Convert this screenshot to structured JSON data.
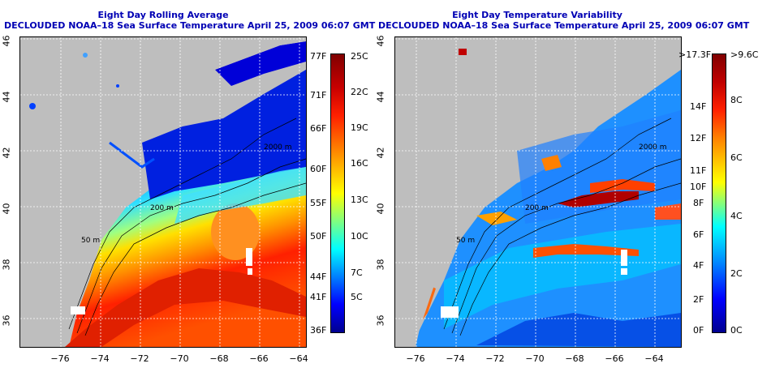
{
  "left_panel": {
    "title": "Eight Day Rolling Average",
    "subtitle": "DECLOUDED NOAA–18 Sea Surface Temperature April 25, 2009 06:07 GMT",
    "lat_labels": [
      "46",
      "44",
      "42",
      "40",
      "38",
      "36"
    ],
    "lon_labels": [
      "−76",
      "−74",
      "−72",
      "−70",
      "−68",
      "−66",
      "−64"
    ],
    "contour_labels": [
      "50 m",
      "200 m",
      "2000 m",
      "50 m",
      "200 m"
    ],
    "colorbar": {
      "fahrenheit": [
        "77F",
        "71F",
        "66F",
        "60F",
        "55F",
        "50F",
        "44F",
        "41F",
        "36F"
      ],
      "celsius": [
        "25C",
        "22C",
        "19C",
        "16C",
        "13C",
        "10C",
        "7C",
        "5C"
      ]
    }
  },
  "right_panel": {
    "title": "Eight Day Temperature Variability",
    "subtitle": "DECLOUDED NOAA–18 Sea Surface Temperature April 25, 2009 06:07 GMT",
    "lat_labels": [
      "46",
      "44",
      "42",
      "40",
      "38",
      "36"
    ],
    "lon_labels": [
      "−76",
      "−74",
      "−72",
      "−70",
      "−68",
      "−66",
      "−64"
    ],
    "contour_labels": [
      "50 m",
      "200 m",
      "2000 m",
      "50 m",
      "200 m"
    ],
    "colorbar": {
      "fahrenheit": [
        ">17.3F",
        "14F",
        "12F",
        "11F",
        "10F",
        "8F",
        "6F",
        "4F",
        "2F",
        "0F"
      ],
      "celsius": [
        ">9.6C",
        "8C",
        "6C",
        "4C",
        "2C",
        "0C"
      ]
    }
  },
  "colors": {
    "title": "#0000b4",
    "land": "#bebebe",
    "sst_scale": [
      "#00008f",
      "#0000ff",
      "#0080ff",
      "#00ffff",
      "#80ff80",
      "#ffff00",
      "#ff8000",
      "#ff0000",
      "#800000"
    ]
  }
}
